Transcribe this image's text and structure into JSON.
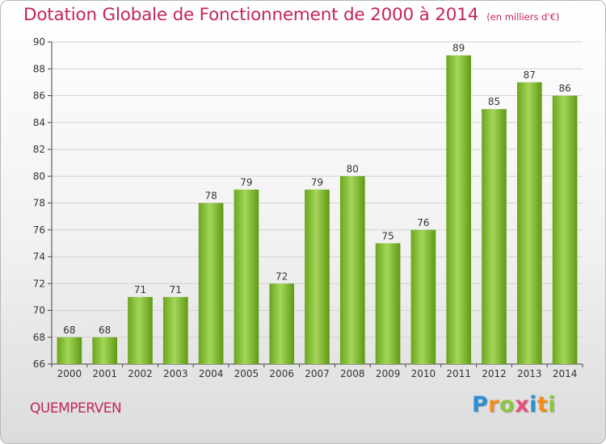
{
  "title": "Dotation Globale de Fonctionnement de 2000 à 2014",
  "subtitle": "(en milliers d'€)",
  "commune": "QUEMPERVEN",
  "logo": {
    "letters": [
      "P",
      "r",
      "o",
      "x",
      "i",
      "t",
      "i"
    ],
    "colors": [
      "#2b8fd6",
      "#f28c1c",
      "#8dc63f",
      "#e94e77",
      "#2b8fd6",
      "#f28c1c",
      "#8dc63f"
    ]
  },
  "colors": {
    "title": "#c2255c",
    "bar_light": "#a5d65a",
    "bar_dark": "#5f9a14"
  },
  "chart_data": {
    "type": "bar",
    "categories": [
      "2000",
      "2001",
      "2002",
      "2003",
      "2004",
      "2005",
      "2006",
      "2007",
      "2008",
      "2009",
      "2010",
      "2011",
      "2012",
      "2013",
      "2014"
    ],
    "values": [
      68,
      68,
      71,
      71,
      78,
      79,
      72,
      79,
      80,
      75,
      76,
      89,
      85,
      87,
      86
    ],
    "ylim": [
      66,
      90
    ],
    "yticks": [
      66,
      68,
      70,
      72,
      74,
      76,
      78,
      80,
      82,
      84,
      86,
      88,
      90
    ],
    "grid": true,
    "legend": "none"
  }
}
